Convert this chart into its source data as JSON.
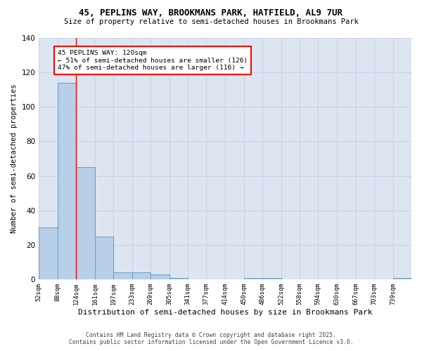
{
  "title1": "45, PEPLINS WAY, BROOKMANS PARK, HATFIELD, AL9 7UR",
  "title2": "Size of property relative to semi-detached houses in Brookmans Park",
  "xlabel": "Distribution of semi-detached houses by size in Brookmans Park",
  "ylabel": "Number of semi-detached properties",
  "footer1": "Contains HM Land Registry data © Crown copyright and database right 2025.",
  "footer2": "Contains public sector information licensed under the Open Government Licence v3.0.",
  "annotation_title": "45 PEPLINS WAY: 120sqm",
  "annotation_line2": "← 51% of semi-detached houses are smaller (126)",
  "annotation_line3": "47% of semi-detached houses are larger (116) →",
  "bar_edges": [
    52,
    88,
    124,
    161,
    197,
    233,
    269,
    305,
    341,
    377,
    414,
    450,
    486,
    522,
    558,
    594,
    630,
    667,
    703,
    739,
    775
  ],
  "bar_heights": [
    30,
    114,
    65,
    25,
    4,
    4,
    3,
    1,
    0,
    0,
    0,
    1,
    1,
    0,
    0,
    0,
    0,
    0,
    0,
    1
  ],
  "bar_color": "#b8cfe8",
  "bar_edge_color": "#6699cc",
  "grid_color": "#c8d4e8",
  "ax_background_color": "#dde6f0",
  "fig_background_color": "#ffffff",
  "red_line_x": 124,
  "ylim": [
    0,
    140
  ],
  "yticks": [
    0,
    20,
    40,
    60,
    80,
    100,
    120,
    140
  ]
}
